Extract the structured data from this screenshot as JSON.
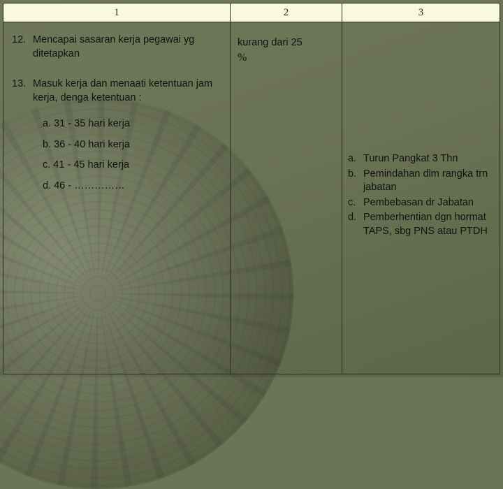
{
  "colors": {
    "header_bg": "#f9f9dc",
    "border": "#2b2f23",
    "bg_top": "#6e7758",
    "bg_bottom": "#5e6649",
    "text": "#0f1210"
  },
  "headers": {
    "c1": "1",
    "c2": "2",
    "c3": "3"
  },
  "col1": {
    "item12_num": "12.",
    "item12_text": "Mencapai sasaran kerja pegawai yg ditetapkan",
    "item13_num": "13.",
    "item13_text": "Masuk kerja dan menaati ketentuan jam kerja, denga  ketentuan :",
    "sub_a": "a. 31 - 35 hari kerja",
    "sub_b": "b. 36 - 40  hari kerja",
    "sub_c": "c. 41 - 45 hari kerja",
    "sub_d": "d. 46 - ……………"
  },
  "col2": {
    "line1": "kurang dari 25",
    "pct": "%"
  },
  "col3": {
    "a_lbl": "a.",
    "a_tx": "Turun Pangkat 3 Thn",
    "b_lbl": "b.",
    "b_tx": "Pemindahan dlm rangka trn jabatan",
    "c_lbl": "c.",
    "c_tx": "Pembebasan dr Jabatan",
    "d_lbl": "d.",
    "d_tx": "Pemberhentian dgn hormat TAPS, sbg PNS atau PTDH"
  }
}
